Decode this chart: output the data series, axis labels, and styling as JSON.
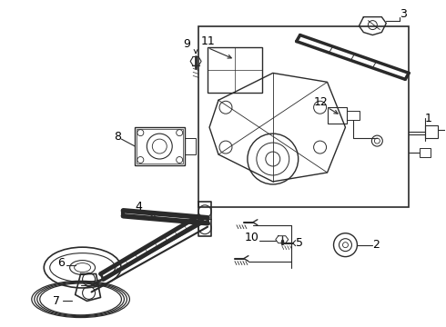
{
  "bg_color": "#ffffff",
  "line_color": "#2a2a2a",
  "label_color": "#000000",
  "fig_width": 4.9,
  "fig_height": 3.6,
  "dpi": 100
}
